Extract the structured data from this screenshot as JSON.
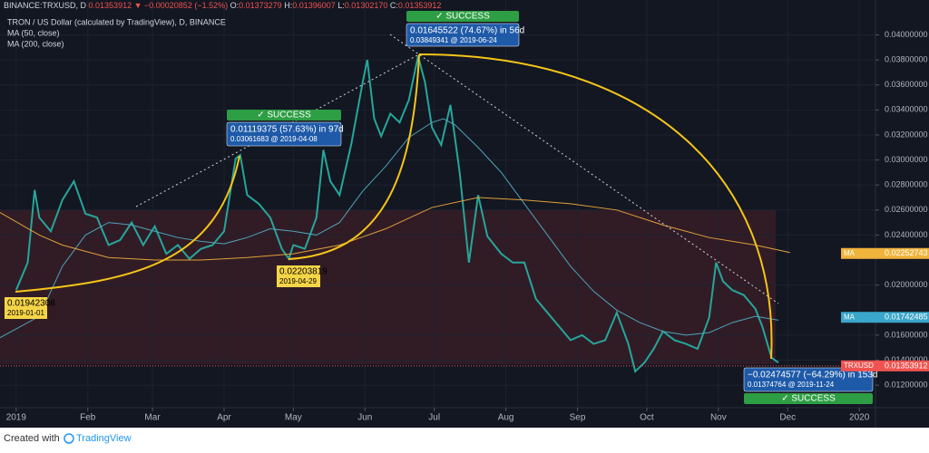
{
  "chart_data": {
    "type": "line",
    "header": {
      "symbol": "BINANCE:TRXUSD, D",
      "last": "0.01353912",
      "change": "▼ −0.00020852 (−1.52%)",
      "ohlc": [
        {
          "label": "O:",
          "value": "0.01373279"
        },
        {
          "label": "H:",
          "value": "0.01396007"
        },
        {
          "label": "L:",
          "value": "0.01302170"
        },
        {
          "label": "C:",
          "value": "0.01353912"
        }
      ]
    },
    "title": "TRON / US Dollar (calculated by TradingView), D, BINANCE",
    "xlim": [
      -7,
      372
    ],
    "ylim": [
      0.0102,
      0.0417
    ],
    "xticks": [
      {
        "value": 0,
        "label": "2019"
      },
      {
        "value": 31,
        "label": "Feb"
      },
      {
        "value": 59,
        "label": "Mar"
      },
      {
        "value": 90,
        "label": "Apr"
      },
      {
        "value": 120,
        "label": "May"
      },
      {
        "value": 151,
        "label": "Jun"
      },
      {
        "value": 181,
        "label": "Jul"
      },
      {
        "value": 212,
        "label": "Aug"
      },
      {
        "value": 243,
        "label": "Sep"
      },
      {
        "value": 273,
        "label": "Oct"
      },
      {
        "value": 304,
        "label": "Nov"
      },
      {
        "value": 334,
        "label": "Dec"
      },
      {
        "value": 365,
        "label": "2020"
      }
    ],
    "yticks": [
      {
        "value": 0.012,
        "label": "0.01200000"
      },
      {
        "value": 0.014,
        "label": "0.01400000"
      },
      {
        "value": 0.016,
        "label": "0.01600000"
      },
      {
        "value": 0.02,
        "label": "0.02000000"
      },
      {
        "value": 0.024,
        "label": "0.02400000"
      },
      {
        "value": 0.026,
        "label": "0.02600000"
      },
      {
        "value": 0.028,
        "label": "0.02800000"
      },
      {
        "value": 0.03,
        "label": "0.03000000"
      },
      {
        "value": 0.032,
        "label": "0.03200000"
      },
      {
        "value": 0.034,
        "label": "0.03400000"
      },
      {
        "value": 0.036,
        "label": "0.03600000"
      },
      {
        "value": 0.038,
        "label": "0.03800000"
      },
      {
        "value": 0.04,
        "label": "0.04000000"
      }
    ],
    "grid": true,
    "series": [
      {
        "name": "TRXUSD",
        "color": "#26a69a",
        "x": [
          0,
          5,
          8,
          10,
          15,
          20,
          25,
          30,
          35,
          40,
          45,
          50,
          55,
          60,
          65,
          70,
          75,
          80,
          85,
          90,
          95,
          97,
          100,
          105,
          110,
          115,
          118,
          120,
          125,
          130,
          133,
          136,
          140,
          145,
          150,
          152,
          155,
          158,
          162,
          166,
          170,
          174,
          177,
          180,
          184,
          188,
          192,
          196,
          200,
          204,
          210,
          215,
          220,
          225,
          230,
          235,
          240,
          245,
          250,
          255,
          260,
          265,
          268,
          272,
          276,
          280,
          285,
          290,
          295,
          300,
          303,
          306,
          310,
          315,
          320,
          323,
          327,
          330
        ],
        "values": [
          0.0196,
          0.0218,
          0.0276,
          0.0254,
          0.0243,
          0.0268,
          0.0283,
          0.0257,
          0.0254,
          0.0232,
          0.0236,
          0.025,
          0.0232,
          0.0247,
          0.0225,
          0.0232,
          0.0221,
          0.0229,
          0.0232,
          0.0243,
          0.0301,
          0.0304,
          0.0272,
          0.0265,
          0.0254,
          0.0229,
          0.0221,
          0.0232,
          0.0229,
          0.0254,
          0.0308,
          0.0283,
          0.0272,
          0.0312,
          0.0362,
          0.038,
          0.0333,
          0.0319,
          0.0337,
          0.033,
          0.0348,
          0.0383,
          0.0362,
          0.0326,
          0.0312,
          0.0344,
          0.029,
          0.0218,
          0.0272,
          0.0239,
          0.0225,
          0.0218,
          0.0218,
          0.0189,
          0.0178,
          0.0167,
          0.0156,
          0.016,
          0.0153,
          0.0156,
          0.0178,
          0.0153,
          0.0131,
          0.0138,
          0.0149,
          0.0163,
          0.0156,
          0.0153,
          0.0149,
          0.0174,
          0.0218,
          0.0203,
          0.0196,
          0.0192,
          0.0181,
          0.0167,
          0.0142,
          0.0138
        ]
      },
      {
        "name": "MA (50, close)",
        "color": "#4fa3b8",
        "x": [
          -7,
          10,
          20,
          30,
          40,
          50,
          60,
          70,
          80,
          90,
          100,
          110,
          120,
          130,
          140,
          150,
          160,
          170,
          180,
          185,
          190,
          200,
          210,
          220,
          230,
          240,
          250,
          260,
          270,
          280,
          290,
          300,
          310,
          320,
          330
        ],
        "values": [
          0.0158,
          0.0175,
          0.0215,
          0.024,
          0.025,
          0.0248,
          0.0243,
          0.0238,
          0.0235,
          0.0233,
          0.0238,
          0.0245,
          0.0243,
          0.024,
          0.025,
          0.0275,
          0.0295,
          0.0318,
          0.033,
          0.0333,
          0.0328,
          0.031,
          0.029,
          0.0265,
          0.024,
          0.0215,
          0.0195,
          0.018,
          0.017,
          0.0163,
          0.016,
          0.0162,
          0.017,
          0.0175,
          0.0172
        ]
      },
      {
        "name": "MA (200, close)",
        "color": "#e0a03a",
        "x": [
          -7,
          10,
          20,
          40,
          60,
          80,
          100,
          120,
          140,
          160,
          180,
          200,
          220,
          240,
          260,
          280,
          300,
          320,
          335
        ],
        "values": [
          0.0258,
          0.024,
          0.0232,
          0.0222,
          0.022,
          0.022,
          0.0222,
          0.0225,
          0.0232,
          0.0245,
          0.0262,
          0.027,
          0.0268,
          0.0265,
          0.026,
          0.0248,
          0.0238,
          0.0232,
          0.0226
        ]
      }
    ],
    "price_tags": [
      {
        "name": "MA",
        "label": "0.02252743",
        "value": 0.02252743,
        "color": "#f0b43c"
      },
      {
        "name": "MA",
        "label": "0.01742485",
        "value": 0.01742485,
        "color": "#3aa6c9"
      },
      {
        "name": "TRXUSD",
        "label": "0.01353912",
        "value": 0.01353912,
        "color": "#ef5350"
      }
    ],
    "annotations": {
      "success": "✓ SUCCESS",
      "m1": [
        "0.01119375 (57.63%) in 97d",
        "0.03061683 @ 2019-04-08"
      ],
      "m2": [
        "0.01645522 (74.67%) in 56d",
        "0.03849341 @ 2019-06-24"
      ],
      "m3": [
        "−0.02474577 (−64.29%) in 153d",
        "0.01374764 @ 2019-11-24"
      ],
      "p1": [
        "0.01942308",
        "2019-01-01"
      ],
      "p2": [
        "0.02203819",
        "2019-04-29"
      ]
    },
    "footer": {
      "created": "Created with",
      "brand": "TradingView"
    }
  }
}
